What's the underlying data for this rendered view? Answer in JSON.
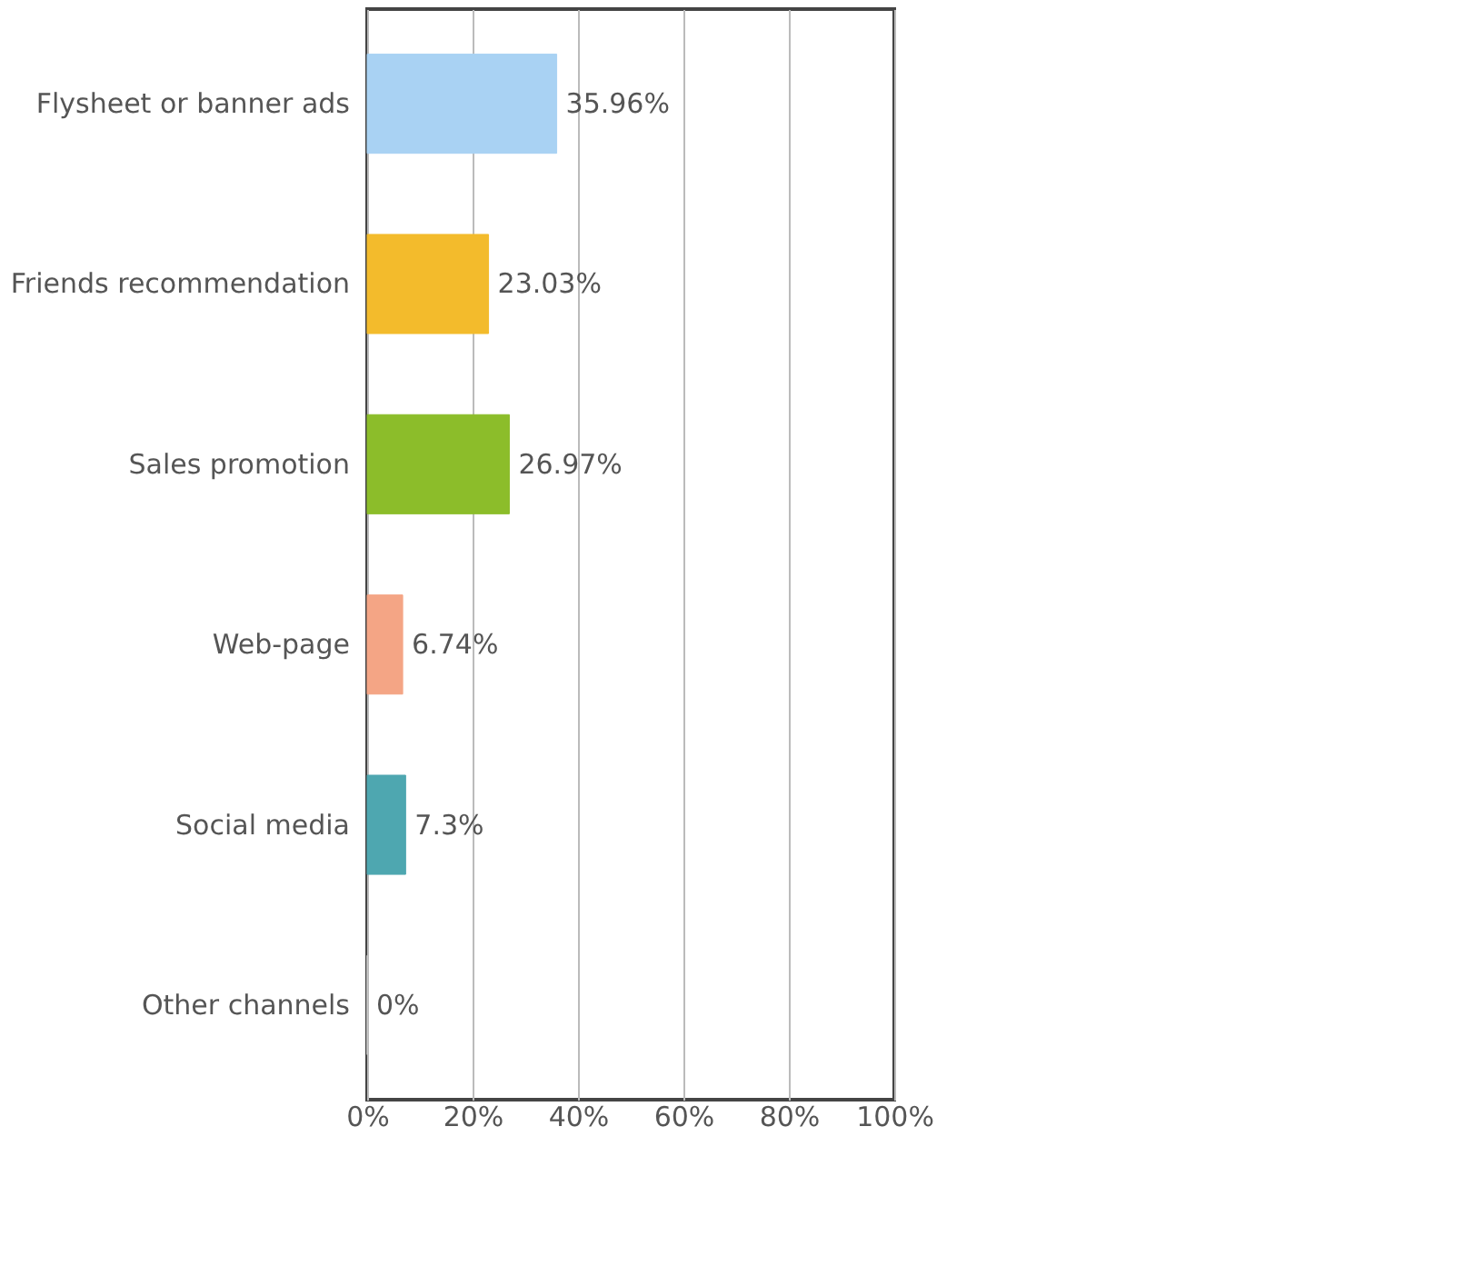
{
  "chart_data": {
    "type": "bar",
    "orientation": "horizontal",
    "categories": [
      "Flysheet or banner ads",
      "Friends recommendation",
      "Sales promotion",
      "Web-page",
      "Social media",
      "Other channels"
    ],
    "values": [
      35.96,
      23.03,
      26.97,
      6.74,
      7.3,
      0
    ],
    "value_labels": [
      "35.96%",
      "23.03%",
      "26.97%",
      "6.74%",
      "7.3%",
      "0%"
    ],
    "colors": [
      "#a9d2f3",
      "#f3bb2c",
      "#8cbd2a",
      "#f4a585",
      "#4ea7b0",
      "#cccccc"
    ],
    "xlim": [
      0,
      100
    ],
    "xticks": [
      {
        "value": 0,
        "label": "0%"
      },
      {
        "value": 20,
        "label": "20%"
      },
      {
        "value": 40,
        "label": "40%"
      },
      {
        "value": 60,
        "label": "60%"
      },
      {
        "value": 80,
        "label": "80%"
      },
      {
        "value": 100,
        "label": "100%"
      }
    ],
    "grid": "x"
  }
}
